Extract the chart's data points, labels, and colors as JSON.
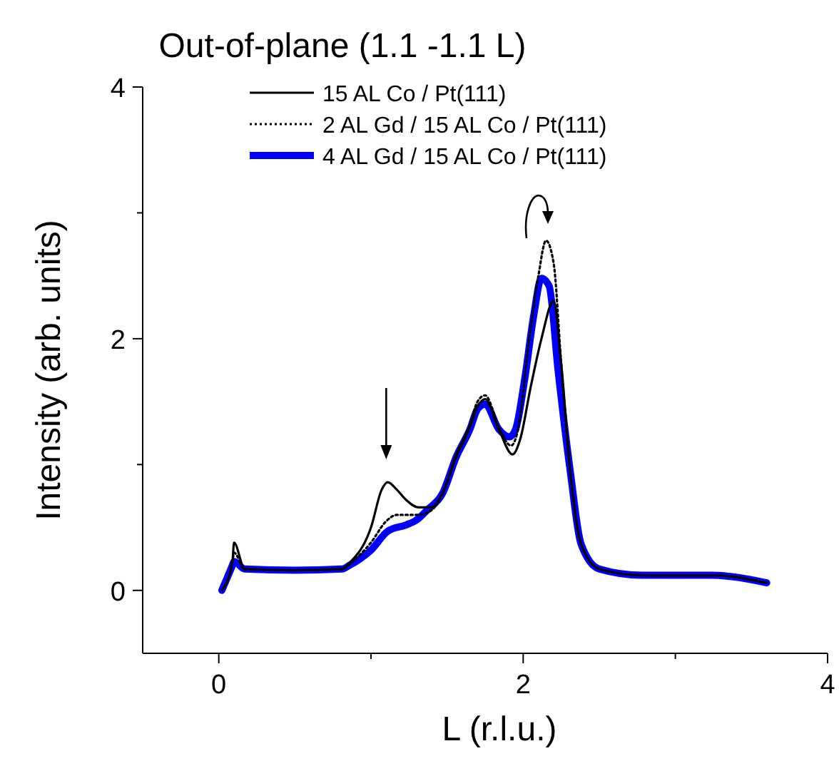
{
  "chart_data": {
    "type": "line",
    "title": "Out-of-plane (1.1 -1.1 L)",
    "xlabel": "L (r.l.u.)",
    "ylabel": "Intensity (arb. units)",
    "xlim": [
      -0.5,
      4
    ],
    "ylim": [
      -0.5,
      4
    ],
    "xticks": [
      0,
      {
        "value": 1,
        "label": null
      },
      2,
      {
        "value": 3,
        "label": null
      },
      4
    ],
    "yticks": [
      0,
      {
        "value": 1,
        "label": null
      },
      2,
      {
        "value": 3,
        "label": null
      },
      4
    ],
    "legend": "top",
    "grid": false,
    "series": [
      {
        "name": "15 AL Co / Pt(111)",
        "color": "#000000",
        "line_style": "solid",
        "x": [
          0.02,
          0.09,
          0.1,
          0.17,
          0.5,
          0.81,
          0.86,
          1.0,
          1.07,
          1.11,
          1.17,
          1.23,
          1.31,
          1.4,
          1.47,
          1.56,
          1.65,
          1.7,
          1.75,
          1.84,
          1.93,
          1.98,
          2.05,
          2.12,
          2.2,
          2.25,
          2.31,
          2.38,
          2.5,
          2.78,
          3.24,
          3.6
        ],
        "values": [
          0,
          0.23,
          0.38,
          0.17,
          0.16,
          0.17,
          0.22,
          0.5,
          0.8,
          0.86,
          0.8,
          0.72,
          0.66,
          0.66,
          0.77,
          1.06,
          1.3,
          1.46,
          1.52,
          1.28,
          1.08,
          1.2,
          1.62,
          2.0,
          2.3,
          1.8,
          0.94,
          0.37,
          0.17,
          0.12,
          0.12,
          0.06
        ]
      },
      {
        "name": "2 AL Gd / 15 AL Co / Pt(111)",
        "color": "#000000",
        "line_style": "dotted",
        "x": [
          0.02,
          0.09,
          0.1,
          0.17,
          0.5,
          0.81,
          0.86,
          1.0,
          1.1,
          1.17,
          1.23,
          1.31,
          1.4,
          1.47,
          1.56,
          1.65,
          1.7,
          1.75,
          1.84,
          1.92,
          1.97,
          2.03,
          2.1,
          2.15,
          2.2,
          2.25,
          2.31,
          2.38,
          2.5,
          2.78,
          3.24,
          3.6
        ],
        "values": [
          0,
          0.23,
          0.3,
          0.17,
          0.16,
          0.17,
          0.21,
          0.38,
          0.55,
          0.6,
          0.6,
          0.6,
          0.64,
          0.77,
          1.08,
          1.32,
          1.5,
          1.55,
          1.3,
          1.15,
          1.3,
          1.9,
          2.5,
          2.78,
          2.6,
          1.8,
          0.94,
          0.37,
          0.17,
          0.12,
          0.12,
          0.06
        ]
      },
      {
        "name": "4 AL Gd / 15 AL Co / Pt(111)",
        "color": "#0000ff",
        "line_style": "solid",
        "x": [
          0.02,
          0.09,
          0.1,
          0.17,
          0.5,
          0.81,
          0.86,
          1.0,
          1.11,
          1.23,
          1.3,
          1.37,
          1.47,
          1.56,
          1.65,
          1.7,
          1.75,
          1.84,
          1.91,
          1.95,
          2.01,
          2.07,
          2.12,
          2.17,
          2.23,
          2.31,
          2.38,
          2.5,
          2.78,
          3.24,
          3.6
        ],
        "values": [
          0,
          0.2,
          0.23,
          0.17,
          0.16,
          0.17,
          0.2,
          0.32,
          0.47,
          0.52,
          0.56,
          0.64,
          0.77,
          1.06,
          1.28,
          1.44,
          1.48,
          1.28,
          1.22,
          1.28,
          1.68,
          2.19,
          2.48,
          2.42,
          1.74,
          0.94,
          0.37,
          0.17,
          0.12,
          0.12,
          0.06
        ]
      }
    ]
  }
}
